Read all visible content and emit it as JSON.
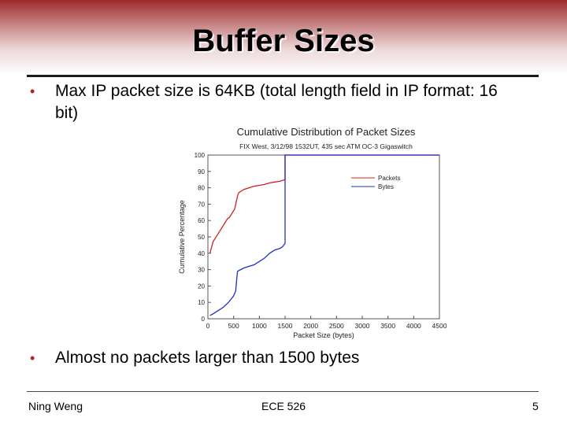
{
  "slide": {
    "title": "Buffer Sizes",
    "bullets": [
      "Max IP packet size is 64KB (total length field in IP format: 16 bit)",
      "Almost no packets larger than 1500 bytes"
    ],
    "footer": {
      "author": "Ning Weng",
      "course": "ECE 526",
      "page": "5"
    },
    "colors": {
      "title_band": "#9e2a2a",
      "bullet": "#b22222"
    }
  },
  "chart_data": {
    "type": "line",
    "title": "Cumulative Distribution of Packet Sizes",
    "subtitle": "FIX West, 3/12/98 1532UT, 435 sec ATM OC-3 Gigaswitch",
    "xlabel": "Packet Size (bytes)",
    "ylabel": "Cumulative Percentage",
    "xlim": [
      0,
      4500
    ],
    "ylim": [
      0,
      100
    ],
    "xticks": [
      "0",
      "500",
      "1000",
      "1500",
      "2000",
      "2500",
      "3000",
      "3500",
      "4000",
      "4500"
    ],
    "yticks": [
      "0",
      "10",
      "20",
      "30",
      "40",
      "50",
      "60",
      "70",
      "80",
      "90",
      "100"
    ],
    "legend_position": "top-right",
    "series": [
      {
        "name": "Packets",
        "color": "#d02020",
        "x": [
          40,
          100,
          200,
          300,
          380,
          420,
          520,
          576,
          600,
          700,
          800,
          900,
          1000,
          1100,
          1200,
          1300,
          1400,
          1450,
          1500,
          1500,
          4500
        ],
        "y": [
          40,
          47,
          52,
          57,
          61,
          62,
          67,
          75,
          77,
          79,
          80,
          81,
          81.5,
          82,
          83,
          83.5,
          84,
          84.5,
          85,
          100,
          100
        ]
      },
      {
        "name": "Bytes",
        "color": "#2030c0",
        "x": [
          40,
          100,
          200,
          300,
          400,
          500,
          540,
          560,
          576,
          700,
          800,
          900,
          1000,
          1100,
          1200,
          1300,
          1400,
          1450,
          1500,
          1500,
          4500
        ],
        "y": [
          2,
          3,
          5,
          7,
          10,
          14,
          17,
          24,
          29,
          31,
          32,
          33,
          35,
          37,
          40,
          42,
          43,
          44,
          46,
          100,
          100
        ]
      }
    ]
  }
}
